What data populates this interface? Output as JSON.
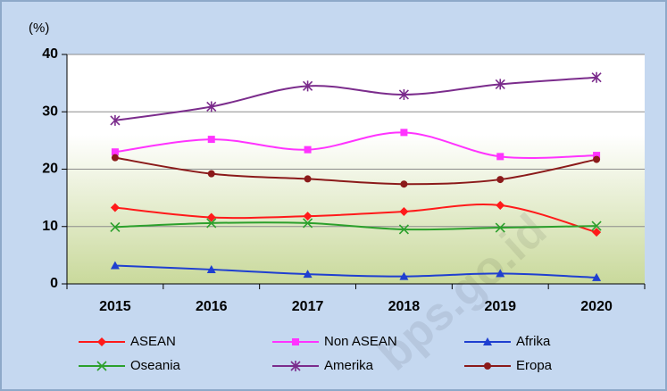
{
  "chart_data": {
    "type": "line",
    "y_label": "(%)",
    "watermark": "bps.go.id",
    "categories": [
      "2015",
      "2016",
      "2017",
      "2018",
      "2019",
      "2020"
    ],
    "series": [
      {
        "name": "ASEAN",
        "color": "#ff1a1a",
        "marker": "diamond",
        "values": [
          13.3,
          11.6,
          11.8,
          12.6,
          13.7,
          9.0
        ]
      },
      {
        "name": "Non ASEAN",
        "color": "#ff33ff",
        "marker": "square",
        "values": [
          23.0,
          25.2,
          23.4,
          26.4,
          22.2,
          22.4
        ]
      },
      {
        "name": "Afrika",
        "color": "#1f3fd0",
        "marker": "triangle",
        "values": [
          3.2,
          2.5,
          1.7,
          1.3,
          1.8,
          1.1
        ]
      },
      {
        "name": "Oseania",
        "color": "#2ca02c",
        "marker": "x",
        "values": [
          9.9,
          10.6,
          10.6,
          9.5,
          9.8,
          10.1
        ]
      },
      {
        "name": "Amerika",
        "color": "#7b2c8c",
        "marker": "star",
        "values": [
          28.5,
          30.9,
          34.5,
          33.0,
          34.8,
          36.0
        ]
      },
      {
        "name": "Eropa",
        "color": "#8b1a1a",
        "marker": "circle",
        "values": [
          22.0,
          19.2,
          18.3,
          17.4,
          18.2,
          21.7
        ]
      }
    ],
    "ylim": [
      0,
      40
    ],
    "yticks": [
      0,
      10,
      20,
      30,
      40
    ],
    "grid": true,
    "smooth": true
  }
}
